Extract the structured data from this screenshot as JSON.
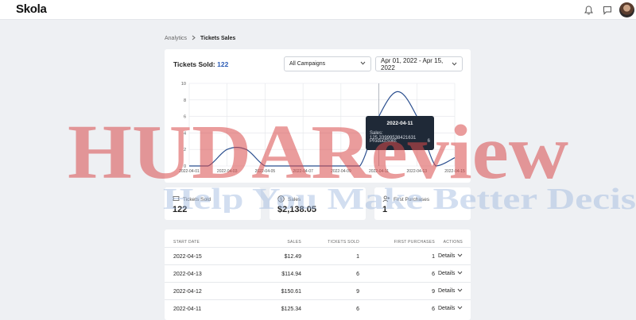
{
  "app": {
    "logo": "Skola"
  },
  "breadcrumb": {
    "parent": "Analytics",
    "current": "Tickets Sales"
  },
  "chart_card": {
    "title_prefix": "Tickets Sold:",
    "title_count": "122",
    "campaign_select": "All Campaigns",
    "date_range": "Apr 01, 2022 - Apr 15, 2022"
  },
  "chart_data": {
    "type": "line",
    "x": [
      "2022-04-01",
      "2022-04-02",
      "2022-04-03",
      "2022-04-04",
      "2022-04-05",
      "2022-04-06",
      "2022-04-07",
      "2022-04-08",
      "2022-04-09",
      "2022-04-10",
      "2022-04-11",
      "2022-04-12",
      "2022-04-13",
      "2022-04-14",
      "2022-04-15"
    ],
    "x_tick_labels": [
      "2022-04-01",
      "2022-04-03",
      "2022-04-05",
      "2022-04-07",
      "2022-04-09",
      "2022-04-11",
      "2022-04-13",
      "2022-04-15"
    ],
    "y_ticks": [
      "0",
      "2",
      "4",
      "6",
      "8",
      "10"
    ],
    "series": [
      {
        "values": [
          0,
          0,
          2,
          2,
          0,
          0,
          0,
          0,
          0,
          0,
          6,
          9,
          6,
          0,
          1
        ]
      }
    ],
    "ylim": [
      0,
      10
    ],
    "grid": true,
    "line_color": "#2b4f8f"
  },
  "tooltip": {
    "date": "2022-04-11",
    "sales_label": "Sales:",
    "sales_value": "125.33999538421631",
    "product_label": "ProductSold:",
    "product_value": "6"
  },
  "stats": [
    {
      "label": "Tickets Sold",
      "value": "122",
      "icon": "ticket-icon"
    },
    {
      "label": "Sales",
      "value": "$2,138.05",
      "icon": "dollar-icon"
    },
    {
      "label": "First Purchases",
      "value": "1",
      "icon": "user-plus-icon"
    }
  ],
  "table": {
    "headers": {
      "start_date": "START DATE",
      "sales": "SALES",
      "tickets_sold": "TICKETS SOLD",
      "first_purchases": "FIRST PURCHASES",
      "actions": "ACTIONS"
    },
    "details_label": "Details",
    "rows": [
      {
        "date": "2022-04-15",
        "sales": "$12.49",
        "tickets": "1",
        "first": "1"
      },
      {
        "date": "2022-04-13",
        "sales": "$114.94",
        "tickets": "6",
        "first": "6"
      },
      {
        "date": "2022-04-12",
        "sales": "$150.61",
        "tickets": "9",
        "first": "9"
      },
      {
        "date": "2022-04-11",
        "sales": "$125.34",
        "tickets": "6",
        "first": "6"
      }
    ]
  },
  "watermark": {
    "line1": "HUDAReview",
    "line2": "Help You Make Better Decis"
  }
}
